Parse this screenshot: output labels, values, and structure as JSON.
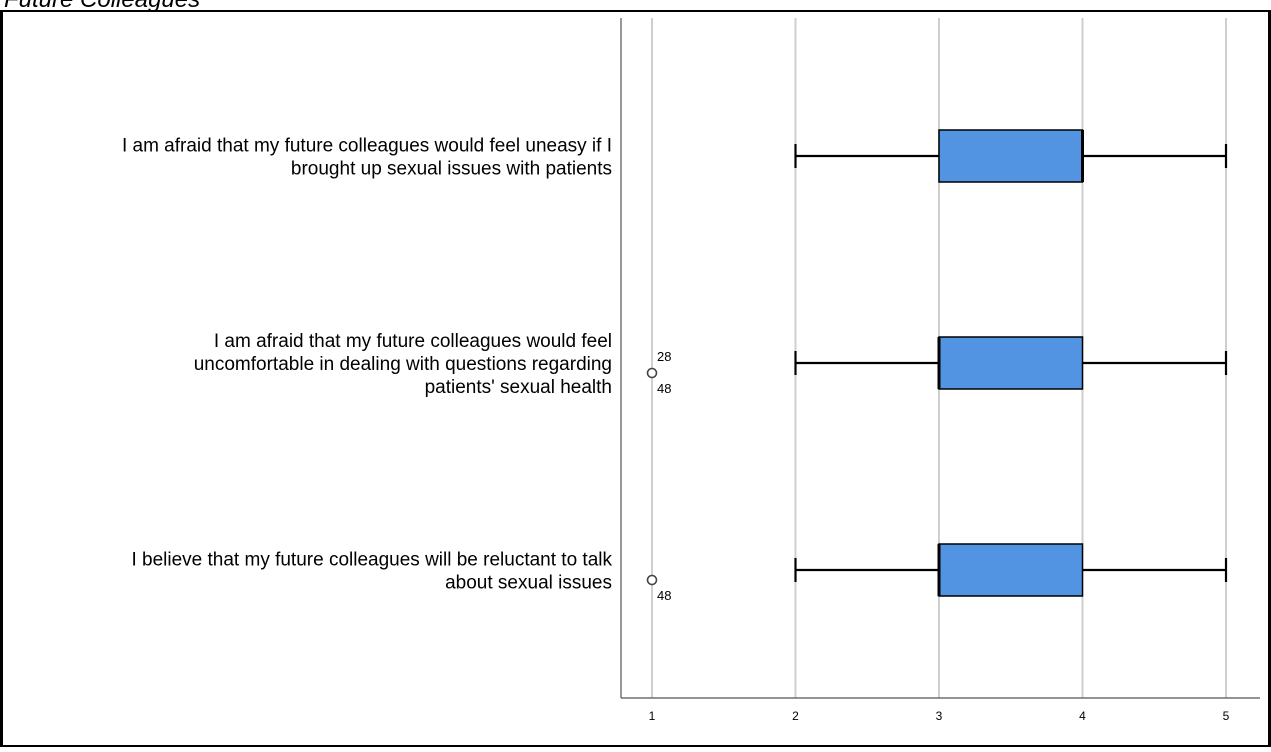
{
  "page": {
    "title": "Future Colleagues"
  },
  "chart_data": {
    "type": "boxplot",
    "title": "Future Colleagues",
    "xlim": [
      0.8,
      5.2
    ],
    "x_ticks": [
      "1",
      "2",
      "3",
      "4",
      "5"
    ],
    "grid": true,
    "orientation": "horizontal",
    "box_color": "#5294e2",
    "items": [
      {
        "label_lines": [
          "I am afraid that my future colleagues would feel uneasy if I",
          "brought up sexual issues with patients"
        ],
        "whisker_low": 2,
        "q1": 3,
        "median": 4,
        "q3": 4,
        "whisker_high": 5,
        "outliers": []
      },
      {
        "label_lines": [
          "I am afraid that my future colleagues would feel",
          "uncomfortable in dealing with questions regarding",
          "patients' sexual health"
        ],
        "whisker_low": 2,
        "q1": 3,
        "median": 3,
        "q3": 4,
        "whisker_high": 5,
        "outliers": [
          {
            "value": 1,
            "labels": [
              "28",
              "48"
            ]
          }
        ]
      },
      {
        "label_lines": [
          "I believe that my future colleagues will be reluctant to talk",
          "about sexual issues"
        ],
        "whisker_low": 2,
        "q1": 3,
        "median": 3,
        "q3": 4,
        "whisker_high": 5,
        "outliers": [
          {
            "value": 1,
            "labels": [
              "48"
            ]
          }
        ]
      }
    ]
  }
}
